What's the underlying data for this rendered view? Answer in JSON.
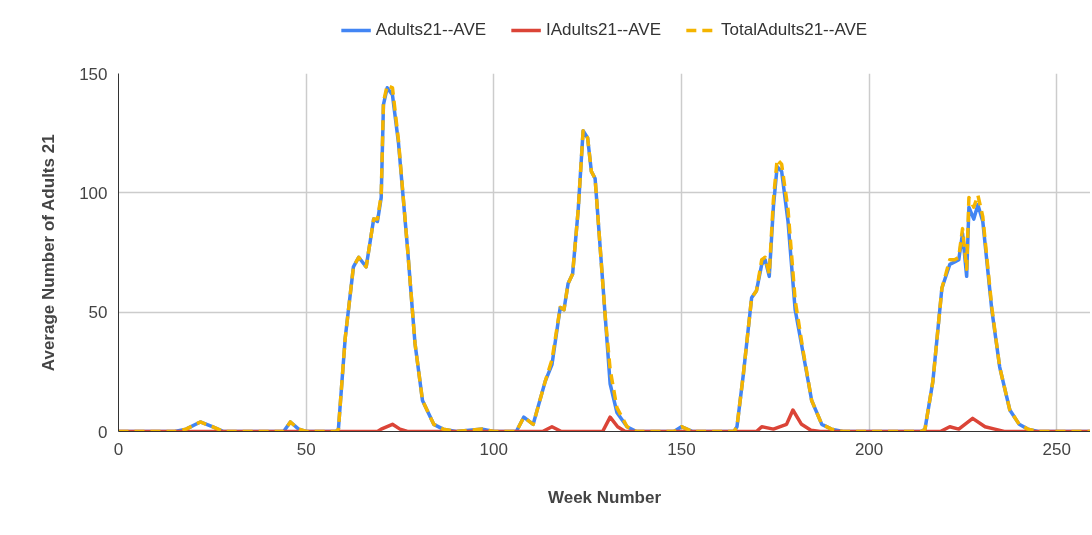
{
  "chart_data": {
    "type": "line",
    "xlabel": "Week Number",
    "ylabel": "Average Number of Adults 21",
    "xlim": [
      0,
      259
    ],
    "ylim": [
      0,
      150
    ],
    "xticks": [
      0,
      50,
      100,
      150,
      200,
      250
    ],
    "yticks": [
      0,
      50,
      100,
      150
    ],
    "grid": true,
    "legend": "top",
    "marker": "none",
    "series": [
      {
        "name": "Adults21--AVE",
        "color": "#4285f4",
        "line_style": "solid",
        "x": [
          0,
          15,
          18,
          21.8,
          25,
          28,
          44,
          45.8,
          48,
          50,
          58,
          58.6,
          60.4,
          62.6,
          64,
          66,
          68,
          69,
          70,
          70.6,
          71.6,
          73,
          74.6,
          77,
          79,
          81,
          84,
          86.5,
          90,
          97,
          100,
          106,
          108,
          110.5,
          113.7,
          115.5,
          117.7,
          118.7,
          119.8,
          121,
          122.5,
          123.8,
          125,
          126,
          127,
          129.7,
          131,
          132.8,
          135.5,
          138,
          148,
          150,
          153,
          164,
          164.8,
          166.5,
          168.7,
          170,
          171.4,
          172.3,
          173.4,
          174.5,
          175.5,
          176.7,
          178.4,
          180.3,
          182.4,
          184.7,
          187.4,
          190,
          193,
          214,
          214.9,
          217,
          219.4,
          221.5,
          222.8,
          223.9,
          224.9,
          226,
          226.6,
          227.9,
          229,
          230.3,
          232.7,
          234.8,
          237.5,
          240,
          242.3,
          245,
          259
        ],
        "values": [
          0,
          0,
          1,
          4,
          2,
          0,
          0,
          4,
          1,
          0,
          0,
          1,
          39,
          69,
          73,
          69,
          89,
          88,
          98,
          137,
          144,
          141,
          121,
          77,
          37,
          13,
          3,
          1,
          0,
          1,
          0,
          0,
          6,
          3,
          21,
          28,
          52,
          51,
          62,
          66,
          93,
          126,
          123,
          109,
          106,
          48,
          20,
          8,
          2,
          0,
          0,
          2,
          0,
          0,
          2,
          24,
          56,
          59,
          70,
          72,
          65,
          94,
          111,
          109,
          88,
          51,
          33,
          13,
          3,
          1,
          0,
          0,
          1,
          21,
          60,
          70,
          71,
          72,
          83,
          65,
          94,
          89,
          95,
          88,
          51,
          27,
          9,
          3,
          1,
          0,
          0
        ]
      },
      {
        "name": "IAdults21--AVE",
        "color": "#db4437",
        "line_style": "solid",
        "x": [
          0,
          69,
          70,
          73,
          75,
          77,
          113,
          115.5,
          118,
          129,
          131,
          133,
          135,
          170,
          171.4,
          174.5,
          178,
          179.7,
          182,
          184.5,
          187,
          219,
          221.5,
          223.9,
          227.6,
          230.9,
          233.5,
          236,
          259
        ],
        "values": [
          0,
          0,
          1,
          3,
          1,
          0,
          0,
          2,
          0,
          0,
          6,
          2,
          0,
          0,
          2,
          1,
          3,
          9,
          3,
          0.5,
          0,
          0,
          2,
          1,
          5.5,
          2,
          1,
          0,
          0
        ]
      },
      {
        "name": "TotalAdults21--AVE",
        "color": "#f4b400",
        "line_style": "dashed",
        "x": [
          0,
          15,
          18,
          21.8,
          25,
          28,
          44,
          45.8,
          48,
          50,
          58,
          58.6,
          60.4,
          62.6,
          64,
          66,
          68,
          69,
          70,
          70.6,
          71.6,
          73,
          74.6,
          77,
          79,
          81,
          84,
          86.5,
          90,
          97,
          100,
          106,
          108,
          110.5,
          113.7,
          115.5,
          117.7,
          118.7,
          119.8,
          121,
          122.5,
          123.8,
          125,
          126,
          127,
          129.7,
          131,
          132.8,
          135.5,
          138,
          148,
          150,
          153,
          164,
          164.8,
          166.5,
          168.7,
          170,
          171.4,
          172.3,
          173.4,
          174.5,
          175.5,
          176.7,
          178.4,
          180.3,
          182.4,
          184.7,
          187.4,
          190,
          193,
          214,
          214.9,
          217,
          219.4,
          221.5,
          222.8,
          223.9,
          224.9,
          226,
          226.6,
          227.9,
          229,
          230.3,
          232.7,
          234.8,
          237.5,
          240,
          242.3,
          245,
          259
        ],
        "values": [
          0,
          0,
          1,
          4,
          2,
          0,
          0,
          4,
          1,
          0,
          0,
          1,
          39,
          69,
          73,
          69,
          89,
          89,
          99,
          138,
          145,
          144,
          122,
          77,
          37,
          13,
          3,
          1,
          0,
          1,
          0,
          0,
          6,
          3,
          21,
          30,
          52,
          51,
          62,
          66,
          93,
          126,
          123,
          109,
          106,
          48,
          26,
          10,
          2,
          0,
          0,
          2,
          0,
          0,
          2,
          24,
          56,
          59,
          72,
          73,
          66,
          97,
          114,
          112,
          93,
          55,
          34,
          13,
          3,
          1,
          0,
          0,
          1,
          21,
          60,
          72,
          72,
          73,
          85,
          68,
          98,
          94,
          99,
          90,
          52,
          27,
          9,
          3,
          1,
          0,
          0
        ]
      }
    ]
  }
}
